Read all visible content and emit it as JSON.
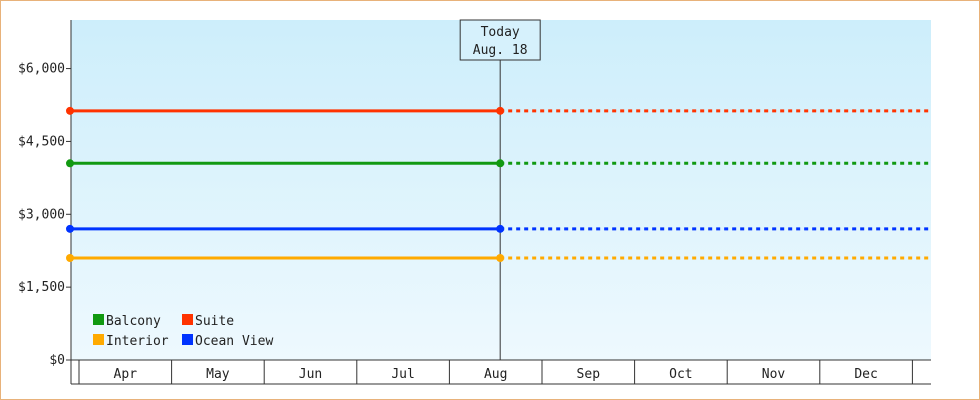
{
  "chart_data": {
    "type": "line",
    "x": [
      "Apr",
      "May",
      "Jun",
      "Jul",
      "Aug",
      "Sep",
      "Oct",
      "Nov",
      "Dec"
    ],
    "ylim": [
      0,
      7000
    ],
    "y_ticks": [
      "$0",
      "$1,500",
      "$3,000",
      "$4,500",
      "$6,000"
    ],
    "y_tick_values": [
      0,
      1500,
      3000,
      4500,
      6000
    ],
    "today_marker": {
      "line1": "Today",
      "line2": "Aug. 18",
      "x": "2024-08-18"
    },
    "series": [
      {
        "name": "Suite",
        "color": "#ff3300",
        "value": 5130,
        "start": "Apr",
        "solid_until": "Aug",
        "dashed_after": true
      },
      {
        "name": "Balcony",
        "color": "#119911",
        "value": 4050,
        "start": "Apr",
        "solid_until": "Aug",
        "dashed_after": true
      },
      {
        "name": "Ocean View",
        "color": "#0033ff",
        "value": 2700,
        "start": "Apr",
        "solid_until": "Aug",
        "dashed_after": true
      },
      {
        "name": "Interior",
        "color": "#ffaa00",
        "value": 2100,
        "start": "Apr",
        "solid_until": "Aug",
        "dashed_after": true
      }
    ],
    "legend": {
      "placement": "bottom-left",
      "order": [
        "Balcony",
        "Suite",
        "Interior",
        "Ocean View"
      ]
    },
    "grid": false,
    "background_gradient": [
      "#cdeefb",
      "#eef9fe"
    ]
  }
}
